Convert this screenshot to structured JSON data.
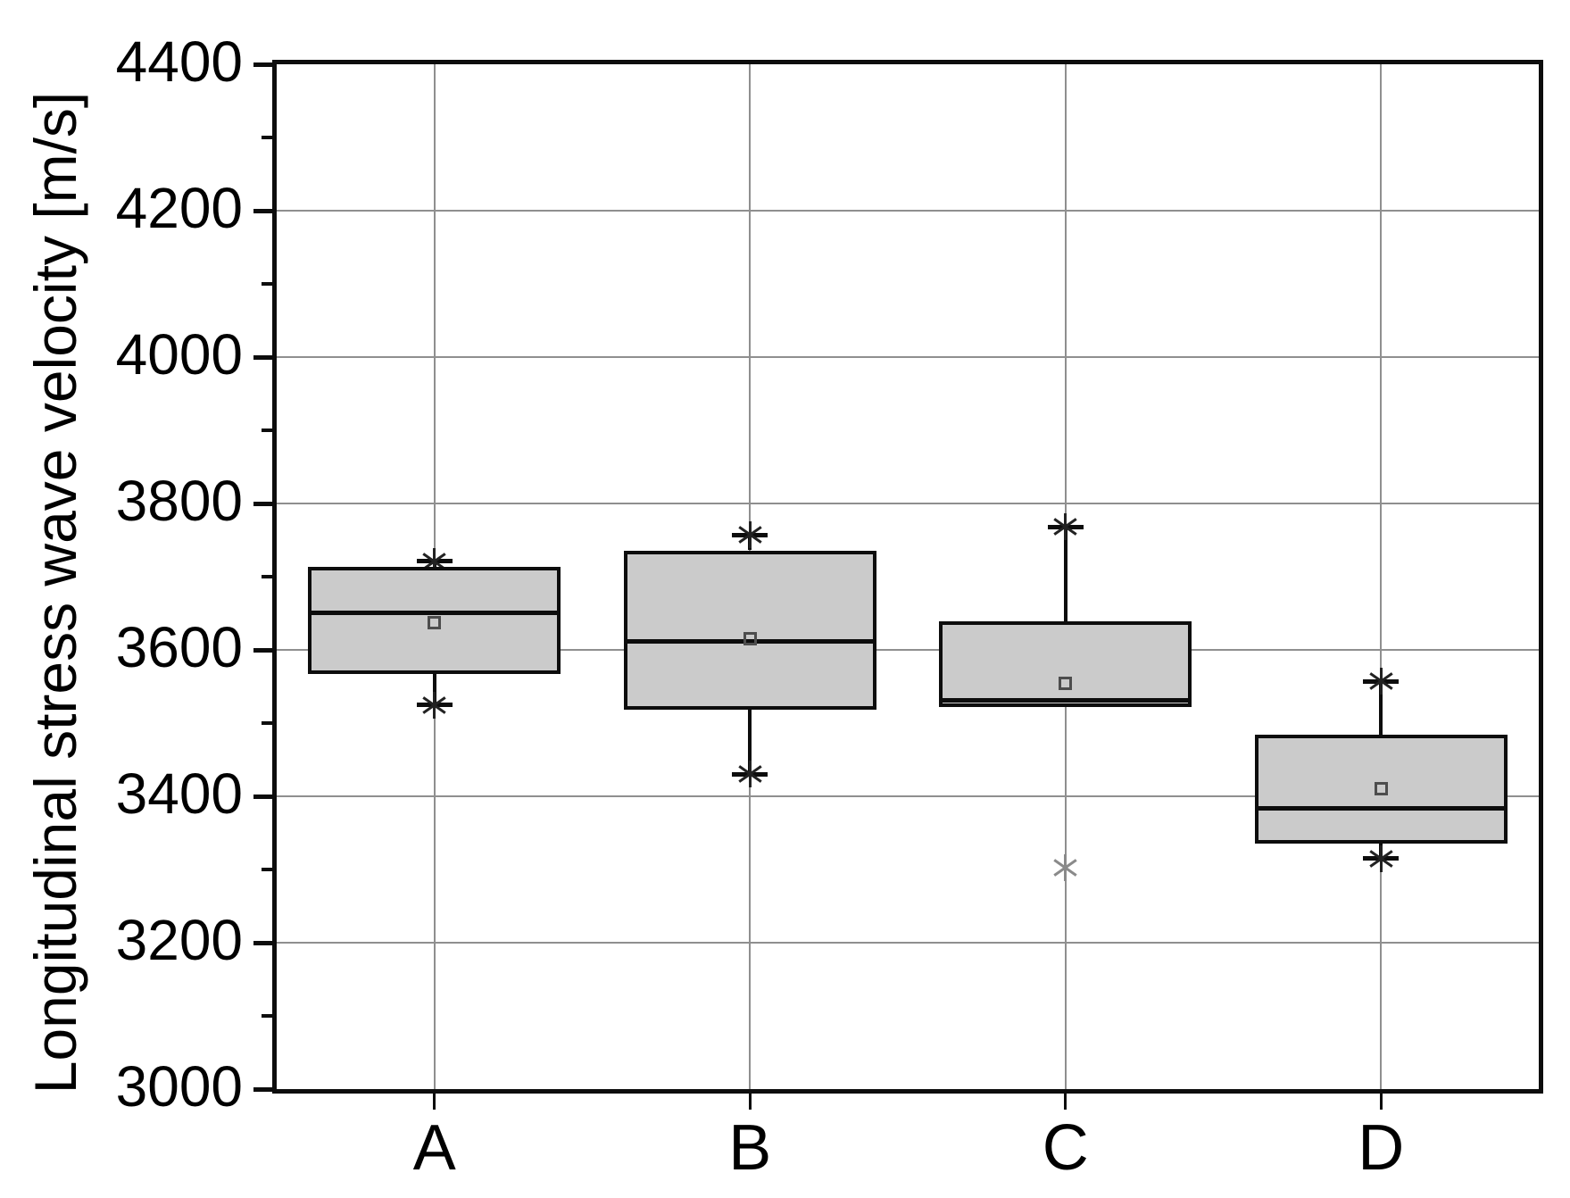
{
  "chart_data": {
    "type": "boxplot",
    "title": "",
    "xlabel": "",
    "ylabel": "Longitudinal stress wave velocity [m/s]",
    "categories": [
      "A",
      "B",
      "C",
      "D"
    ],
    "ylim": [
      3000,
      4400
    ],
    "yticks_major": [
      3000,
      3200,
      3400,
      3600,
      3800,
      4000,
      4200,
      4400
    ],
    "yticks_minor": [
      3100,
      3300,
      3500,
      3700,
      3900,
      4100,
      4300
    ],
    "grid": true,
    "legend_position": "none",
    "markers": {
      "mean": "open-square",
      "whisker_end": "asterisk",
      "outlier": "asterisk"
    },
    "series": [
      {
        "category": "A",
        "whisker_low": 3525,
        "q1": 3567,
        "median": 3651,
        "mean": 3637,
        "q3": 3713,
        "whisker_high": 3721,
        "outliers": []
      },
      {
        "category": "B",
        "whisker_low": 3430,
        "q1": 3518,
        "median": 3612,
        "mean": 3615,
        "q3": 3736,
        "whisker_high": 3757,
        "outliers": []
      },
      {
        "category": "C",
        "whisker_low": null,
        "q1": 3522,
        "median": 3531,
        "mean": 3554,
        "q3": 3639,
        "whisker_high": 3768,
        "outliers": [
          3303
        ]
      },
      {
        "category": "D",
        "whisker_low": 3315,
        "q1": 3335,
        "median": 3383,
        "mean": 3410,
        "q3": 3484,
        "whisker_high": 3557,
        "outliers": []
      }
    ]
  },
  "colors": {
    "background": "#ffffff",
    "box_fill": "#cbcbcb",
    "line": "#0d0d0d",
    "grid": "#8f8f8f",
    "mean_marker": "#4d4d4d",
    "whisker_end_marker": "#222222",
    "outlier_marker": "#8a8a8a"
  }
}
